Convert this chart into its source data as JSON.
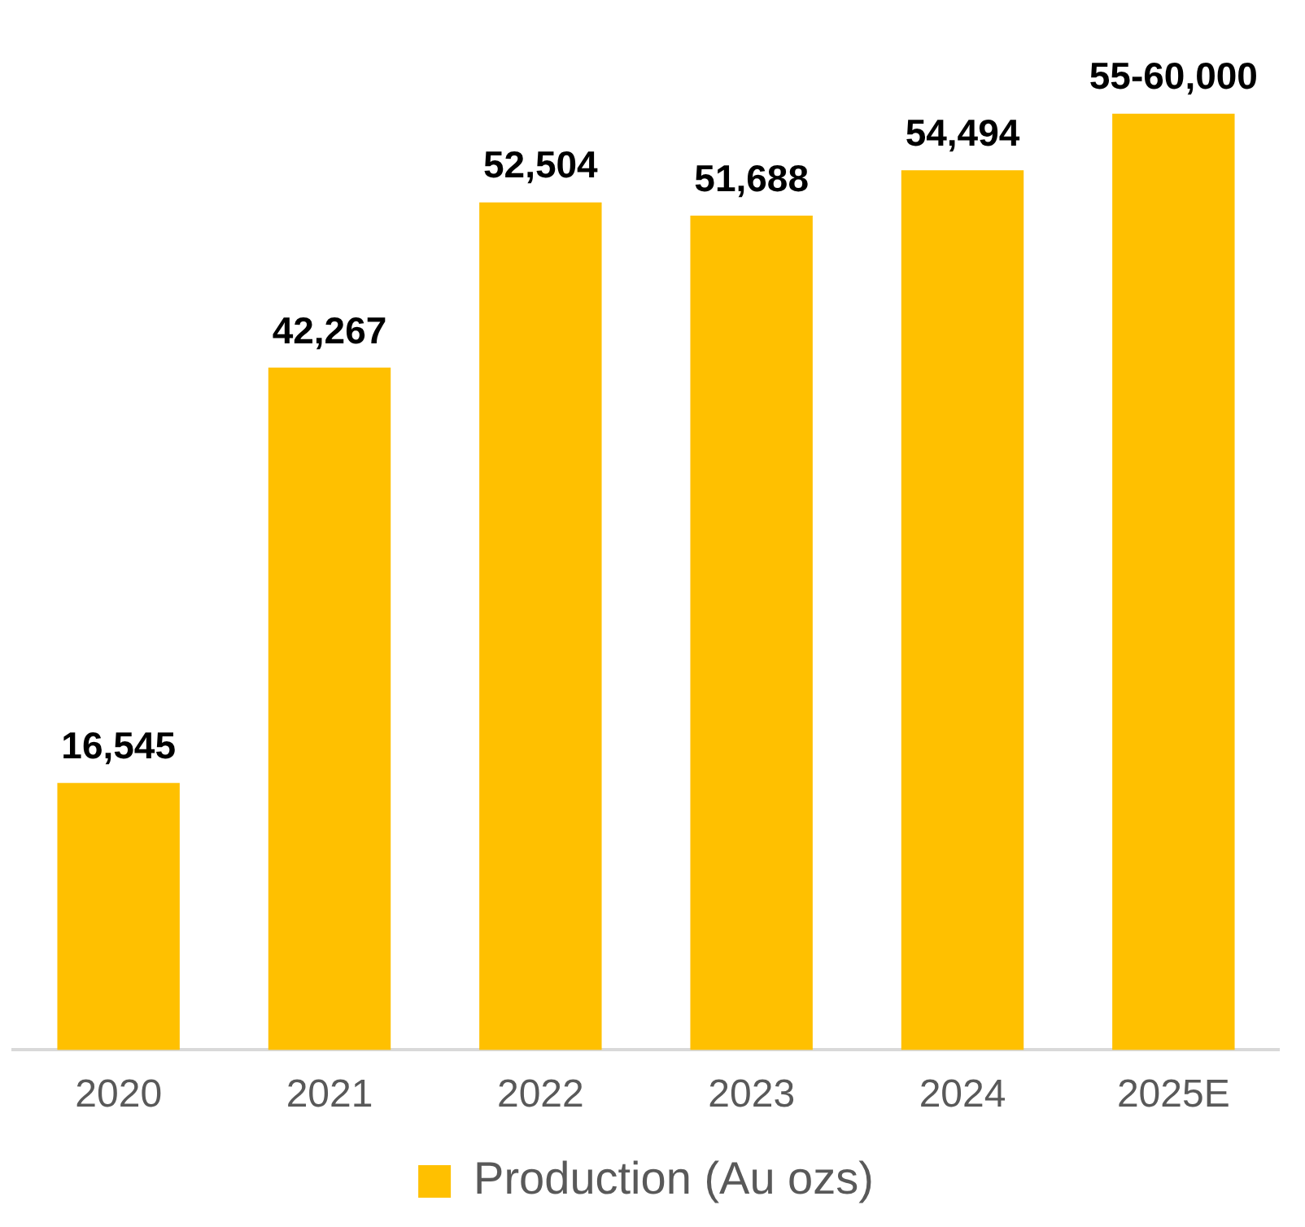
{
  "chart_data": {
    "type": "bar",
    "categories": [
      "2020",
      "2021",
      "2022",
      "2023",
      "2024",
      "2025E"
    ],
    "series": [
      {
        "name": "Production (Au ozs)",
        "color": "#ffc000",
        "values": [
          16545,
          42267,
          52504,
          51688,
          54494,
          58000
        ],
        "value_labels": [
          "16,545",
          "42,267",
          "52,504",
          "51,688",
          "54,494",
          "55-60,000"
        ]
      }
    ],
    "tick_labels": "x",
    "grid": false,
    "legend": "bottom"
  }
}
